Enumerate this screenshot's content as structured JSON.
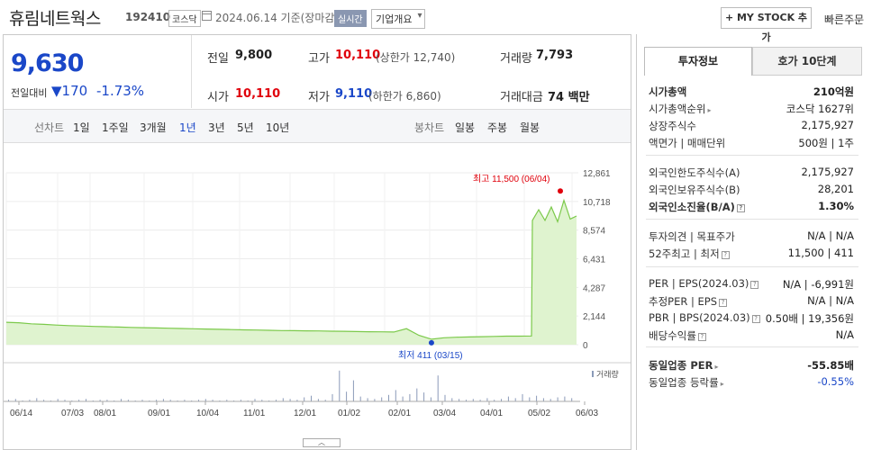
{
  "header": {
    "title": "휴림네트웍스",
    "code": "192410",
    "market": "코스닥",
    "date": "2024.06.14",
    "basis": "기준(장마감)",
    "realtime": "실시간",
    "company_select": "기업개요",
    "my_stock": "+ MY STOCK 추가",
    "quick_order": "빠른주문"
  },
  "quote": {
    "price": "9,630",
    "change_label": "전일대비",
    "change": "▼170",
    "change_pct": "-1.73%",
    "prev_label": "전일",
    "prev": "9,800",
    "high_label": "고가",
    "high": "10,110",
    "upper_limit": "(상한가 12,740)",
    "volume_label": "거래량",
    "volume": "7,793",
    "open_label": "시가",
    "open": "10,110",
    "low_label": "저가",
    "low": "9,110",
    "lower_limit": "(하한가 6,860)",
    "value_label": "거래대금",
    "value": "74 백만"
  },
  "toolbar": {
    "line_label": "선차트",
    "periods": [
      "1일",
      "1주일",
      "3개월",
      "1년",
      "3년",
      "5년",
      "10년"
    ],
    "active_period": "1년",
    "candle_label": "봉차트",
    "candles": [
      "일봉",
      "주봉",
      "월봉"
    ]
  },
  "chart_data": {
    "type": "line",
    "title": "",
    "ylabel": "",
    "yticks": [
      "12,861",
      "10,718",
      "8,574",
      "6,431",
      "4,287",
      "2,144",
      "0"
    ],
    "ylim": [
      0,
      12861
    ],
    "xticks": [
      "06/14",
      "07/03",
      "08/01",
      "09/01",
      "10/04",
      "11/01",
      "12/01",
      "01/02",
      "02/01",
      "03/04",
      "04/01",
      "05/02",
      "06/03"
    ],
    "series": [
      {
        "values": [
          1680,
          1640,
          1560,
          1520,
          1470,
          1430,
          1400,
          1370,
          1350,
          1320,
          1290,
          1270,
          1250,
          1230,
          1210,
          1190,
          1170,
          1150,
          1130,
          1110,
          1100,
          1080,
          1060,
          1050,
          1040,
          1030,
          1010,
          1000,
          980,
          970,
          960,
          950,
          1200,
          700,
          411,
          520,
          560,
          580,
          600,
          620,
          640,
          640,
          650,
          9300,
          10100,
          9300,
          10300,
          9200,
          10800,
          9400,
          9630
        ]
      }
    ],
    "max_label": "최고 11,500 (06/04)",
    "min_label": "최저 411 (03/15)",
    "volume_label": "거래량",
    "volume_bars": [
      2,
      3,
      1,
      2,
      4,
      2,
      1,
      3,
      2,
      1,
      2,
      3,
      1,
      2,
      2,
      1,
      3,
      2,
      1,
      2,
      1,
      2,
      3,
      2,
      1,
      2,
      1,
      2,
      3,
      2,
      1,
      2,
      1,
      2,
      1,
      3,
      2,
      1,
      2,
      4,
      3,
      2,
      5,
      7,
      3,
      2,
      9,
      38,
      12,
      26,
      6,
      4,
      3,
      5,
      8,
      14,
      6,
      9,
      16,
      11,
      5,
      32,
      8,
      4,
      3,
      2,
      3,
      2,
      4,
      2,
      3,
      6,
      4,
      9,
      5,
      7,
      4,
      3,
      5,
      6,
      4
    ]
  },
  "panel": {
    "tab_active": "투자정보",
    "tab_other": "호가 10단계",
    "rows_a": [
      {
        "k": "시가총액",
        "v": "210억원",
        "bold": true
      },
      {
        "k": "시가총액순위",
        "v": "코스닥 1627위",
        "arrow": true
      },
      {
        "k": "상장주식수",
        "v": "2,175,927"
      },
      {
        "k": "액면가 | 매매단위",
        "v": "500원 | 1주"
      }
    ],
    "rows_b": [
      {
        "k": "외국인한도주식수(A)",
        "v": "2,175,927"
      },
      {
        "k": "외국인보유주식수(B)",
        "v": "28,201"
      },
      {
        "k": "외국인소진율(B/A)",
        "v": "1.30%",
        "bold": true,
        "q": true
      }
    ],
    "rows_c": [
      {
        "k": "투자의견 | 목표주가",
        "v": "N/A | N/A"
      },
      {
        "k": "52주최고 | 최저",
        "v": "11,500 | 411",
        "q": true
      }
    ],
    "rows_d": [
      {
        "k": "PER | EPS(2024.03)",
        "v": "N/A | -6,991원",
        "q": true
      },
      {
        "k": "추정PER | EPS",
        "v": "N/A | N/A",
        "q": true
      },
      {
        "k": "PBR | BPS(2024.03)",
        "v": "0.50배 | 19,356원",
        "q": true
      },
      {
        "k": "배당수익률",
        "v": "N/A",
        "q": true
      }
    ],
    "rows_e": [
      {
        "k": "동일업종 PER",
        "v": "-55.85배",
        "bold": true,
        "arrow": true
      },
      {
        "k": "동일업종 등락률",
        "v": "-0.55%",
        "arrow": true,
        "blue": true
      }
    ]
  }
}
